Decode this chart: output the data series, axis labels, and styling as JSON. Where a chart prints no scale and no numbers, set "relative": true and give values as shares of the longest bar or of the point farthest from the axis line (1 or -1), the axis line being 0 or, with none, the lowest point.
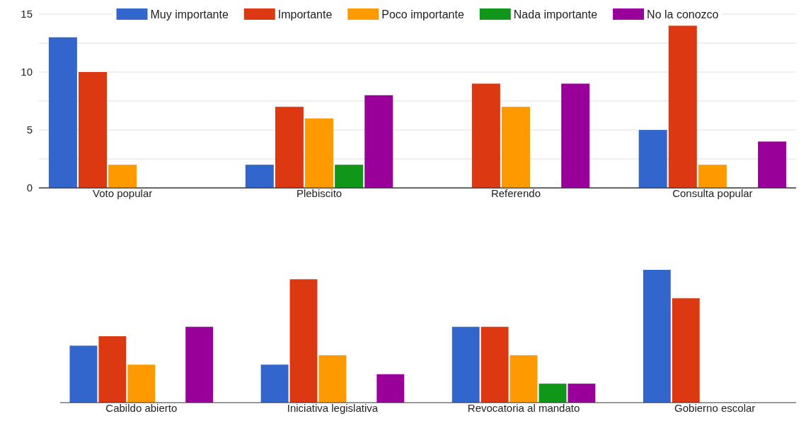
{
  "chart_data": [
    {
      "type": "bar",
      "categories": [
        "Voto popular",
        "Plebiscito",
        "Referendo",
        "Consulta popular"
      ],
      "series": [
        {
          "name": "Muy importante",
          "color": "#3366cc",
          "values": [
            13,
            2,
            0,
            5
          ]
        },
        {
          "name": "Importante",
          "color": "#dc3912",
          "values": [
            10,
            7,
            9,
            14
          ]
        },
        {
          "name": "Poco importante",
          "color": "#ff9900",
          "values": [
            2,
            6,
            7,
            2
          ]
        },
        {
          "name": "Nada importante",
          "color": "#109618",
          "values": [
            0,
            2,
            0,
            0
          ]
        },
        {
          "name": "No la conozco",
          "color": "#990099",
          "values": [
            0,
            8,
            9,
            4
          ]
        }
      ],
      "ylim": [
        0,
        15
      ],
      "yticks": [
        0,
        {
          "value": 2.5,
          "label": null
        },
        5,
        {
          "value": 7.5,
          "label": null
        },
        10,
        {
          "value": 12.5,
          "label": null
        },
        15
      ],
      "grid": "y",
      "legend": "top"
    },
    {
      "type": "bar",
      "categories": [
        "Cabildo abierto",
        "Iniciativa legislativa",
        "Revocatoria al mandato",
        "Gobierno escolar"
      ],
      "series": [
        {
          "color": "#3366cc",
          "values": [
            0.429,
            0.286,
            0.571,
            1
          ]
        },
        {
          "color": "#dc3912",
          "values": [
            0.5,
            0.929,
            0.571,
            0.786
          ]
        },
        {
          "color": "#ff9900",
          "values": [
            0.286,
            0.357,
            0.357,
            0
          ]
        },
        {
          "color": "#109618",
          "values": [
            0,
            0,
            0.143,
            0
          ]
        },
        {
          "color": "#990099",
          "values": [
            0.571,
            0.214,
            0.143,
            0
          ]
        }
      ],
      "relative": true,
      "tick_labels": "x"
    }
  ]
}
